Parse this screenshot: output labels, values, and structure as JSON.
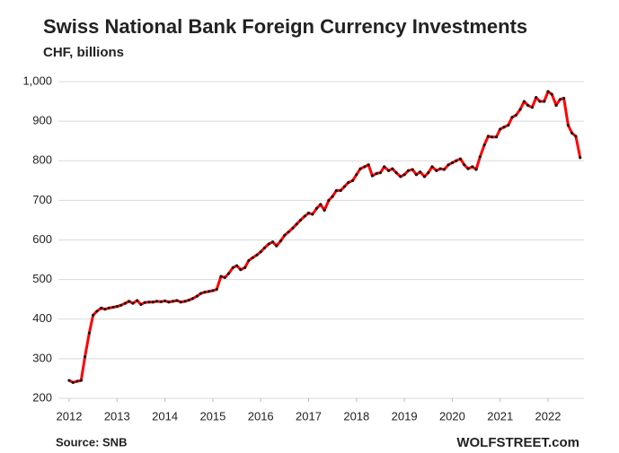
{
  "chart_data": {
    "type": "line",
    "title": "Swiss National Bank Foreign Currency Investments",
    "subtitle": "CHF, billions",
    "source": "Source: SNB",
    "brand": "WOLFSTREET.com",
    "x": [
      2012,
      2012.08,
      2012.17,
      2012.25,
      2012.33,
      2012.42,
      2012.5,
      2012.58,
      2012.67,
      2012.75,
      2012.83,
      2012.92,
      2013,
      2013.08,
      2013.17,
      2013.25,
      2013.33,
      2013.42,
      2013.5,
      2013.58,
      2013.67,
      2013.75,
      2013.83,
      2013.92,
      2014,
      2014.08,
      2014.17,
      2014.25,
      2014.33,
      2014.42,
      2014.5,
      2014.58,
      2014.67,
      2014.75,
      2014.83,
      2014.92,
      2015,
      2015.08,
      2015.17,
      2015.25,
      2015.33,
      2015.42,
      2015.5,
      2015.58,
      2015.67,
      2015.75,
      2015.83,
      2015.92,
      2016,
      2016.08,
      2016.17,
      2016.25,
      2016.33,
      2016.42,
      2016.5,
      2016.58,
      2016.67,
      2016.75,
      2016.83,
      2016.92,
      2017,
      2017.08,
      2017.17,
      2017.25,
      2017.33,
      2017.42,
      2017.5,
      2017.58,
      2017.67,
      2017.75,
      2017.83,
      2017.92,
      2018,
      2018.08,
      2018.17,
      2018.25,
      2018.33,
      2018.42,
      2018.5,
      2018.58,
      2018.67,
      2018.75,
      2018.83,
      2018.92,
      2019,
      2019.08,
      2019.17,
      2019.25,
      2019.33,
      2019.42,
      2019.5,
      2019.58,
      2019.67,
      2019.75,
      2019.83,
      2019.92,
      2020,
      2020.08,
      2020.17,
      2020.25,
      2020.33,
      2020.42,
      2020.5,
      2020.58,
      2020.67,
      2020.75,
      2020.83,
      2020.92,
      2021,
      2021.08,
      2021.17,
      2021.25,
      2021.33,
      2021.42,
      2021.5,
      2021.58,
      2021.67,
      2021.75,
      2021.83,
      2021.92,
      2022,
      2022.08,
      2022.17,
      2022.25,
      2022.33,
      2022.42,
      2022.5,
      2022.58,
      2022.67
    ],
    "series": [
      {
        "color": "#ff0000",
        "marker_color": "#1a1a1a",
        "values": [
          245,
          240,
          243,
          245,
          305,
          365,
          410,
          420,
          428,
          425,
          428,
          430,
          432,
          435,
          440,
          445,
          440,
          447,
          437,
          442,
          443,
          443,
          445,
          444,
          446,
          443,
          445,
          447,
          443,
          445,
          448,
          452,
          458,
          465,
          468,
          470,
          472,
          475,
          508,
          505,
          515,
          530,
          535,
          525,
          530,
          548,
          555,
          562,
          570,
          580,
          590,
          595,
          585,
          598,
          612,
          620,
          630,
          640,
          650,
          660,
          668,
          665,
          680,
          690,
          675,
          700,
          710,
          725,
          725,
          735,
          745,
          750,
          765,
          780,
          785,
          790,
          762,
          768,
          770,
          785,
          775,
          780,
          770,
          760,
          765,
          775,
          778,
          765,
          772,
          760,
          770,
          785,
          775,
          780,
          778,
          790,
          795,
          800,
          805,
          790,
          780,
          785,
          778,
          810,
          840,
          862,
          860,
          860,
          880,
          885,
          890,
          910,
          915,
          930,
          950,
          940,
          935,
          960,
          950,
          950,
          975,
          968,
          940,
          955,
          958,
          890,
          870,
          862,
          808
        ]
      }
    ],
    "xlim": [
      2012,
      2022.75
    ],
    "xticks": [
      2012,
      2013,
      2014,
      2015,
      2016,
      2017,
      2018,
      2019,
      2020,
      2021,
      2022
    ],
    "ylim": [
      200,
      1000
    ],
    "yticks": [
      200,
      300,
      400,
      500,
      600,
      700,
      800,
      900,
      {
        "value": 1000,
        "label": "1,000"
      }
    ],
    "grid": true
  }
}
